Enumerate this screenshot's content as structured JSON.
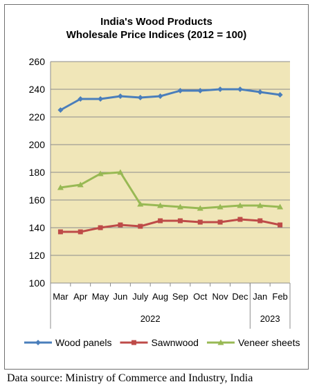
{
  "chart_data": {
    "type": "line",
    "title_line1": "India's Wood Products",
    "title_line2": "Wholesale Price Indices (2012 = 100)",
    "categories": [
      "Mar",
      "Apr",
      "May",
      "Jun",
      "July",
      "Aug",
      "Sep",
      "Oct",
      "Nov",
      "Dec",
      "Jan",
      "Feb"
    ],
    "year_groups": [
      {
        "label": "2022",
        "count": 10
      },
      {
        "label": "2023",
        "count": 2
      }
    ],
    "ylim": [
      100,
      260
    ],
    "yticks": [
      100,
      120,
      140,
      160,
      180,
      200,
      220,
      240,
      260
    ],
    "grid": true,
    "legend_position": "bottom",
    "series": [
      {
        "name": "Wood panels",
        "color": "#4a7ebb",
        "values": [
          225,
          233,
          233,
          235,
          234,
          235,
          239,
          239,
          240,
          240,
          238,
          236
        ]
      },
      {
        "name": "Sawnwood",
        "color": "#be4b48",
        "values": [
          137,
          137,
          140,
          142,
          141,
          145,
          145,
          144,
          144,
          146,
          145,
          142
        ]
      },
      {
        "name": "Veneer sheets",
        "color": "#98b954",
        "values": [
          169,
          171,
          179,
          180,
          157,
          156,
          155,
          154,
          155,
          156,
          156,
          155
        ]
      }
    ]
  },
  "source_text": "Data source: Ministry of Commerce and Industry, India"
}
